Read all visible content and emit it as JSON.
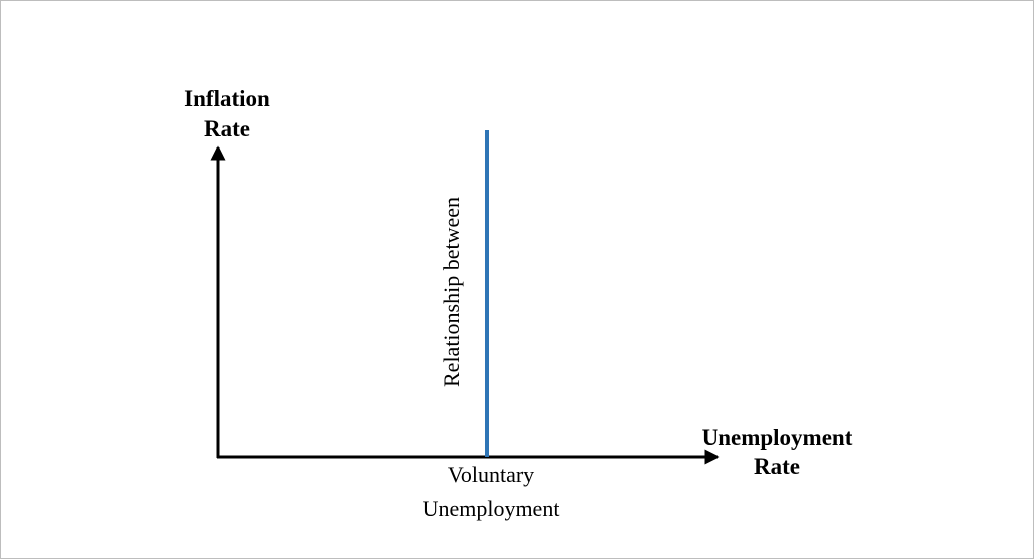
{
  "diagram": {
    "y_axis_label": [
      "Inflation",
      "Rate"
    ],
    "x_axis_label": [
      "Unemployment",
      "Rate"
    ],
    "curve_label": "Relationship between",
    "point_label": [
      "Voluntary",
      "Unemployment"
    ]
  }
}
